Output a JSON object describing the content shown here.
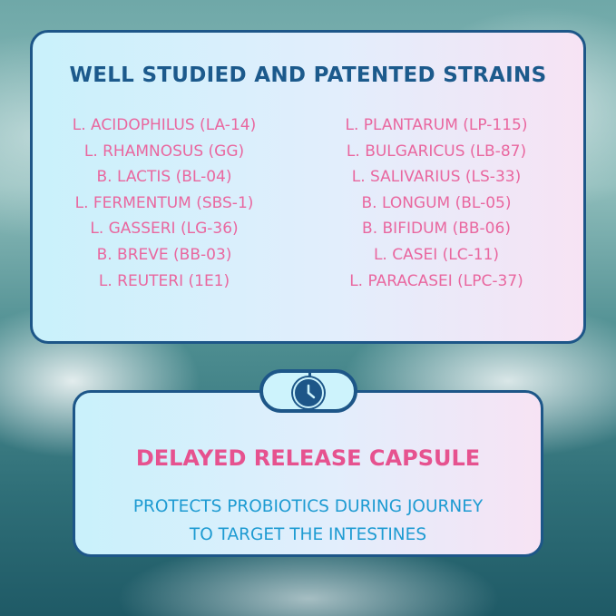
{
  "strains_panel": {
    "title": "WELL STUDIED AND PATENTED STRAINS",
    "left_column": [
      "L. ACIDOPHILUS (LA-14)",
      "L. RHAMNOSUS (GG)",
      "B. LACTIS (BL-04)",
      "L. FERMENTUM (SBS-1)",
      "L. GASSERI (LG-36)",
      "B. BREVE (BB-03)",
      "L. REUTERI (1E1)"
    ],
    "right_column": [
      "L. PLANTARUM (LP-115)",
      "L. BULGARICUS (LB-87)",
      "L. SALIVARIUS (LS-33)",
      "B. LONGUM (BL-05)",
      "B. BIFIDUM (BB-06)",
      "L. CASEI (LC-11)",
      "L. PARACASEI (LPC-37)"
    ]
  },
  "connector": {
    "icon": "clock-icon"
  },
  "capsule_panel": {
    "title": "DELAYED RELEASE CAPSULE",
    "subtitle_lines": [
      "PROTECTS PROBIOTICS DURING JOURNEY",
      "TO TARGET THE INTESTINES"
    ]
  },
  "colors": {
    "border": "#1d5688",
    "strain_text": "#e9679f",
    "title": "#1c5a8c",
    "capsule_title": "#e6528f",
    "capsule_subtitle": "#1e9bd2"
  }
}
